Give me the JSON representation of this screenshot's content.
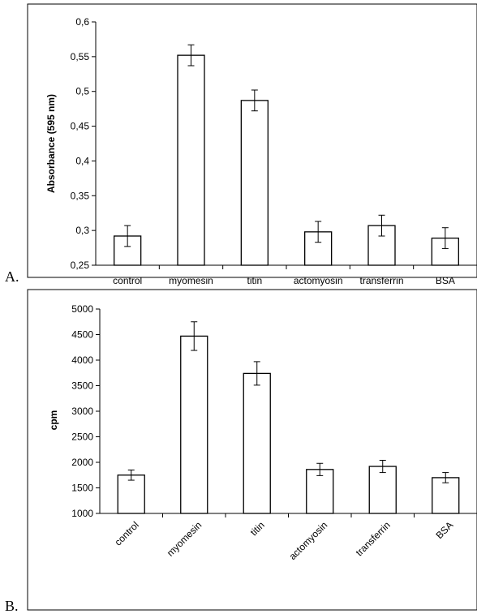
{
  "panels": [
    {
      "label": "A.",
      "chart_data": {
        "type": "bar",
        "categories": [
          "control",
          "myomesin",
          "titin",
          "actomyosin",
          "transferrin",
          "BSA"
        ],
        "values": [
          0.292,
          0.552,
          0.487,
          0.298,
          0.307,
          0.289
        ],
        "error": [
          0.015,
          0.015,
          0.015,
          0.015,
          0.015,
          0.015
        ],
        "ylabel": "Absorbance (595 nm)",
        "xlabel": "",
        "ylim": [
          0.25,
          0.6
        ],
        "yticks": [
          "0,25",
          "0,3",
          "0,35",
          "0,4",
          "0,45",
          "0,5",
          "0,55",
          "0,6"
        ],
        "grid": false,
        "bar_color": "#ffffff",
        "edge_color": "#000000"
      }
    },
    {
      "label": "B.",
      "chart_data": {
        "type": "bar",
        "categories": [
          "control",
          "myomesin",
          "titin",
          "actomyosin",
          "transferrin",
          "BSA"
        ],
        "values": [
          1750,
          4470,
          3740,
          1860,
          1920,
          1700
        ],
        "error": [
          100,
          280,
          230,
          120,
          120,
          100
        ],
        "ylabel": "cpm",
        "xlabel": "",
        "ylim": [
          1000,
          5000
        ],
        "yticks": [
          "1000",
          "1500",
          "2000",
          "2500",
          "3000",
          "3500",
          "4000",
          "4500",
          "5000"
        ],
        "grid": false,
        "rotated_xticks": true,
        "bar_color": "#ffffff",
        "edge_color": "#000000"
      }
    }
  ]
}
